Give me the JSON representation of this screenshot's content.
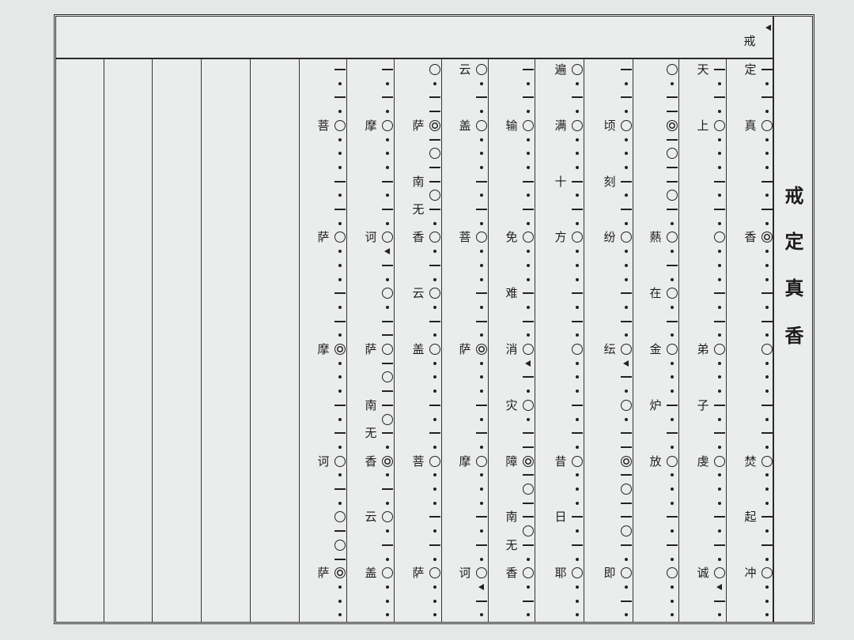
{
  "title": [
    "戒",
    "定",
    "真",
    "香"
  ],
  "header": {
    "lyric": "戒",
    "mark": "<"
  },
  "mark_legend": {
    "-": "dash",
    ".": "dot",
    "o": "circle",
    "@": "double-circle",
    "<": "triangle"
  },
  "columns": [
    [
      "定-",
      ".",
      "-",
      ".",
      "真o",
      ".",
      ".",
      ".",
      "-",
      ".",
      "-",
      ".",
      "香@",
      ".",
      ".",
      ".",
      "-",
      ".",
      "-",
      ".",
      "o",
      ".",
      ".",
      ".",
      "-",
      ".",
      "-",
      ".",
      "焚o",
      ".",
      ".",
      ".",
      "起-",
      ".",
      "-",
      ".",
      "冲o",
      ".",
      ".",
      "."
    ],
    [
      "天-",
      ".",
      "-",
      ".",
      "上o",
      ".",
      ".",
      ".",
      "-",
      ".",
      "-",
      ".",
      "o",
      ".",
      ".",
      ".",
      "-",
      ".",
      "-",
      ".",
      "弟o",
      ".",
      ".",
      ".",
      "子-",
      ".",
      "-",
      ".",
      "虔o",
      ".",
      ".",
      ".",
      "-",
      ".",
      "-",
      ".",
      "诚o",
      "<",
      "-",
      "."
    ],
    [
      "o",
      ".",
      "-",
      "-",
      "@",
      "-",
      "o",
      "-",
      "-",
      "o",
      "-",
      ".",
      "爇o",
      ".",
      "-",
      ".",
      "在o",
      ".",
      "-",
      ".",
      "金o",
      ".",
      ".",
      ".",
      "炉-",
      ".",
      "-",
      ".",
      "放o",
      ".",
      ".",
      ".",
      "-",
      ".",
      "-",
      ".",
      "o",
      ".",
      ".",
      "."
    ],
    [
      "-",
      ".",
      "-",
      ".",
      "顷o",
      ".",
      ".",
      ".",
      "刻-",
      ".",
      "-",
      ".",
      "纷o",
      ".",
      ".",
      ".",
      "-",
      ".",
      "-",
      ".",
      "纭o",
      "<",
      "-",
      ".",
      "o",
      ".",
      "-",
      "-",
      "@",
      "-",
      "o",
      "-",
      "-",
      "o",
      "-",
      ".",
      "即o",
      ".",
      "-",
      "."
    ],
    [
      "遍o",
      ".",
      "-",
      ".",
      "满o",
      ".",
      ".",
      ".",
      "十-",
      ".",
      "-",
      ".",
      "方o",
      ".",
      ".",
      ".",
      "-",
      ".",
      "-",
      ".",
      "o",
      ".",
      ".",
      ".",
      "-",
      ".",
      "-",
      ".",
      "昔o",
      ".",
      ".",
      ".",
      "日-",
      ".",
      "-",
      ".",
      "耶o",
      ".",
      ".",
      "."
    ],
    [
      "-",
      ".",
      "-",
      ".",
      "输o",
      ".",
      ".",
      ".",
      "-",
      ".",
      "-",
      ".",
      "免o",
      ".",
      ".",
      ".",
      "难-",
      ".",
      "-",
      ".",
      "消o",
      "<",
      "-",
      ".",
      "灾o",
      ".",
      "-",
      "-",
      "障@",
      "-",
      "o",
      "-",
      "南-",
      "o",
      "无-",
      ".",
      "香o",
      ".",
      "-",
      "."
    ],
    [
      "云o",
      ".",
      "-",
      ".",
      "盖o",
      ".",
      ".",
      ".",
      "-",
      ".",
      "-",
      ".",
      "菩o",
      ".",
      ".",
      ".",
      "-",
      ".",
      "-",
      ".",
      "萨@",
      ".",
      ".",
      ".",
      "-",
      ".",
      "-",
      ".",
      "摩o",
      ".",
      ".",
      ".",
      "-",
      ".",
      "-",
      ".",
      "诃o",
      "<",
      "-",
      "."
    ],
    [
      "o",
      ".",
      "-",
      "-",
      "萨@",
      "-",
      "o",
      "-",
      "南-",
      "o",
      "无-",
      ".",
      "香o",
      ".",
      "-",
      ".",
      "云o",
      ".",
      "-",
      ".",
      "盖o",
      ".",
      ".",
      ".",
      "-",
      ".",
      "-",
      ".",
      "菩o",
      ".",
      ".",
      ".",
      "-",
      ".",
      "-",
      ".",
      "萨o",
      ".",
      ".",
      "."
    ],
    [
      "-",
      ".",
      "-",
      ".",
      "摩o",
      ".",
      ".",
      ".",
      "-",
      ".",
      "-",
      ".",
      "诃o",
      "<",
      "-",
      ".",
      "o",
      ".",
      "-",
      "-",
      "萨o",
      "-",
      "o",
      "-",
      "南-",
      "o",
      "无-",
      ".",
      "香@",
      ".",
      "-",
      ".",
      "云o",
      ".",
      "-",
      ".",
      "盖o",
      ".",
      ".",
      "."
    ],
    [
      "-",
      ".",
      "-",
      ".",
      "菩o",
      ".",
      ".",
      ".",
      "-",
      ".",
      "-",
      ".",
      "萨o",
      ".",
      ".",
      ".",
      "-",
      ".",
      "-",
      ".",
      "摩@",
      ".",
      ".",
      ".",
      "-",
      ".",
      "-",
      ".",
      "诃o",
      ".",
      "-",
      ".",
      "o",
      "-",
      "o",
      "-",
      "萨@",
      ".",
      ".",
      "."
    ],
    [],
    [],
    [],
    [],
    []
  ]
}
